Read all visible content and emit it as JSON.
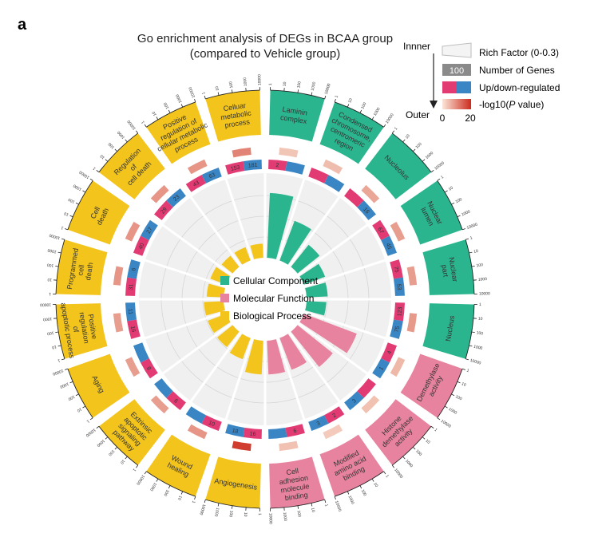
{
  "panel_letter": "a",
  "title_line1": "Go enrichment analysis of DEGs in BCAA group",
  "title_line2": "(compared to Vehicle group)",
  "colors": {
    "cellular_component": "#2bb58f",
    "molecular_function": "#e8839f",
    "biological_process": "#f2c41c",
    "up": "#e23b74",
    "down": "#3a86c4",
    "rich_bg": "#efefef",
    "pval_low": "#f7dccc",
    "pval_high": "#cc2b1d",
    "gene_box": "#8a8a8a"
  },
  "legend": {
    "inner_label": "Innner",
    "outer_label": "Outer",
    "rich_factor": "Rich Factor (0-0.3)",
    "gene_box_value": "100",
    "number_of_genes": "Number of Genes",
    "up_down": "Up/down-regulated",
    "pval_prefix": "-log10(",
    "pval_italic": "P",
    "pval_suffix": " value)",
    "scale_min": "0",
    "scale_max": "20"
  },
  "center_legend": [
    {
      "label": "Cellular Component",
      "key": "cellular_component"
    },
    {
      "label": "Molecular Function",
      "key": "molecular_function"
    },
    {
      "label": "Biological Process",
      "key": "biological_process"
    }
  ],
  "chart_data": {
    "type": "circular-go-enrichment",
    "rich_factor_range": [
      0,
      0.3
    ],
    "pvalue_scale": [
      0,
      20
    ],
    "terms": [
      {
        "name": "Laminin complex",
        "category": "cellular_component",
        "genes": 3,
        "rich": 0.23,
        "pval": 2.5
      },
      {
        "name": "Condensed chromosome, centromeric region",
        "category": "cellular_component",
        "genes": 5,
        "rich": 0.15,
        "pval": 3.5
      },
      {
        "name": "Nucleolus",
        "category": "cellular_component",
        "genes": 36,
        "rich": 0.1,
        "pval": 6
      },
      {
        "name": "Nuclear lumen",
        "category": "cellular_component",
        "genes": 67,
        "rich": 0.08,
        "pval": 7
      },
      {
        "name": "Nuclear part",
        "category": "cellular_component",
        "genes": 75,
        "rich": 0.075,
        "pval": 7
      },
      {
        "name": "Nucleus",
        "category": "cellular_component",
        "genes": 123,
        "rich": 0.07,
        "pval": 7.5
      },
      {
        "name": "Demethylase activity",
        "category": "molecular_function",
        "genes": 4,
        "rich": 0.2,
        "pval": 4
      },
      {
        "name": "Histone demethylase activity",
        "category": "molecular_function",
        "genes": 3,
        "rich": 0.16,
        "pval": 3
      },
      {
        "name": "Modified amino acid binding",
        "category": "molecular_function",
        "genes": 5,
        "rich": 0.12,
        "pval": 2
      },
      {
        "name": "Cell adhesion molecule binding",
        "category": "molecular_function",
        "genes": 6,
        "rich": 0.12,
        "pval": 3
      },
      {
        "name": "Angiogenesis",
        "category": "biological_process",
        "genes": 18,
        "rich": 0.12,
        "pval": 18
      },
      {
        "name": "Wound healing",
        "category": "biological_process",
        "genes": 10,
        "rich": 0.08,
        "pval": 8
      },
      {
        "name": "Extrinsic apoptotic signaling pathway",
        "category": "biological_process",
        "genes": 8,
        "rich": 0.07,
        "pval": 7
      },
      {
        "name": "Aging",
        "category": "biological_process",
        "genes": 8,
        "rich": 0.07,
        "pval": 7
      },
      {
        "name": "Positive regulation of apoptotic process",
        "category": "biological_process",
        "genes": 16,
        "rich": 0.07,
        "pval": 7
      },
      {
        "name": "Programmed cell death",
        "category": "biological_process",
        "genes": 31,
        "rich": 0.06,
        "pval": 8
      },
      {
        "name": "Cell death",
        "category": "biological_process",
        "genes": 40,
        "rich": 0.06,
        "pval": 8
      },
      {
        "name": "Regulation of cell death",
        "category": "biological_process",
        "genes": 29,
        "rich": 0.05,
        "pval": 8
      },
      {
        "name": "Positive regulation of cellular metabolic process",
        "category": "biological_process",
        "genes": 43,
        "rich": 0.05,
        "pval": 8
      },
      {
        "name": "Celluar metabolic process",
        "category": "biological_process",
        "genes": 153,
        "rich": 0.05,
        "pval": 10
      }
    ],
    "sector_labels": [
      [
        "Laminin",
        "complex"
      ],
      [
        "Condensed",
        "chromosome,",
        "centromeric",
        "region"
      ],
      [
        "Nucleolus"
      ],
      [
        "Nuclear",
        "lumen"
      ],
      [
        "Nuclear",
        "part"
      ],
      [
        "Nucleus"
      ],
      [
        "Demethylase",
        "activity"
      ],
      [
        "Histone",
        "demethylase",
        "activity"
      ],
      [
        "Modified",
        "amino acid",
        "binding"
      ],
      [
        "Cell",
        "adhesion",
        "molecule",
        "binding"
      ],
      [
        "Angiogenesis"
      ],
      [
        "Wound",
        "healing"
      ],
      [
        "Extrinsic",
        "apoptotic",
        "signaling",
        "pathway"
      ],
      [
        "Aging"
      ],
      [
        "Positive",
        "regulation",
        "of",
        "apoptotic process"
      ],
      [
        "Programmed",
        "cell",
        "death"
      ],
      [
        "Cell",
        "death"
      ],
      [
        "Regulation",
        "of",
        "cell death"
      ],
      [
        "Positive",
        "regulation of",
        "cellular metabolic",
        "process"
      ],
      [
        "Celluar",
        "metabolic",
        "process"
      ]
    ],
    "gene_ring_labels": [
      [
        "3"
      ],
      [
        "5"
      ],
      [
        "36"
      ],
      [
        "67"
      ],
      [
        "75"
      ],
      [
        "123"
      ],
      [
        "4"
      ],
      [
        "3"
      ],
      [
        "5"
      ],
      [
        "6"
      ],
      [
        "18"
      ],
      [
        "10"
      ],
      [
        "8"
      ],
      [
        "8"
      ],
      [
        "16"
      ],
      [
        "31"
      ],
      [
        "40"
      ],
      [
        "29"
      ],
      [
        "43"
      ],
      [
        "153"
      ]
    ],
    "updown_labels": [
      [
        "2",
        ""
      ],
      [
        "",
        ""
      ],
      [
        "",
        "16"
      ],
      [
        "67",
        "45"
      ],
      [
        "75",
        "53"
      ],
      [
        "123",
        "75"
      ],
      [
        "4",
        "1"
      ],
      [
        "",
        "3"
      ],
      [
        "2",
        "3"
      ],
      [
        "6",
        ""
      ],
      [
        "16",
        "18"
      ],
      [
        "10",
        ""
      ],
      [
        "6",
        ""
      ],
      [
        "8",
        ""
      ],
      [
        "16",
        "11"
      ],
      [
        "31",
        "6"
      ],
      [
        "40",
        "27"
      ],
      [
        "29",
        "23"
      ],
      [
        "43",
        "63"
      ],
      [
        "153",
        "181"
      ]
    ],
    "tick_labels": [
      "1",
      "10",
      "100",
      "1000",
      "10000"
    ]
  }
}
